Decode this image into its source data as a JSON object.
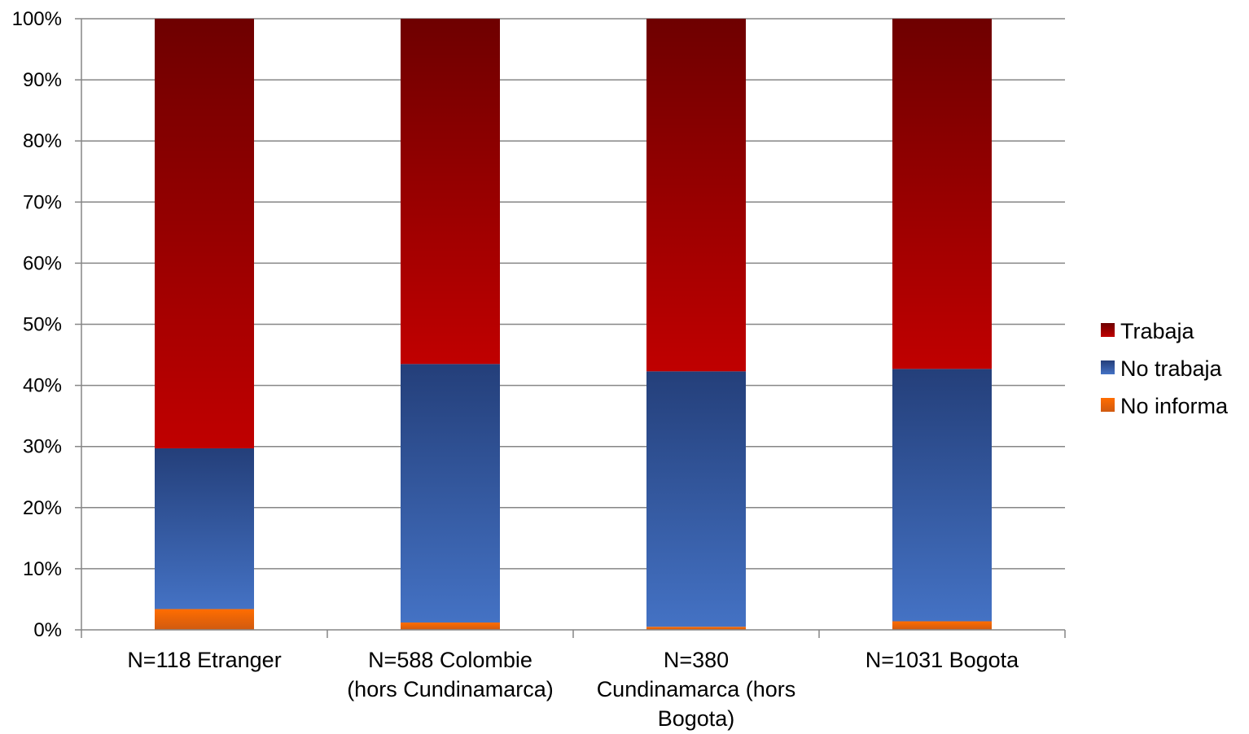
{
  "chart_data": {
    "type": "bar",
    "stacked": true,
    "percent_stacked": true,
    "categories": [
      [
        "N=118 Etranger"
      ],
      [
        "N=588 Colombie",
        "(hors Cundinamarca)"
      ],
      [
        "N=380",
        "Cundinamarca (hors",
        "Bogota)"
      ],
      [
        "N=1031 Bogota"
      ]
    ],
    "series": [
      {
        "name": "No informa",
        "values": [
          3.4,
          1.2,
          0.5,
          1.4
        ],
        "color": "#f06a10"
      },
      {
        "name": "No trabaja",
        "values": [
          26.3,
          42.3,
          41.8,
          41.3
        ],
        "color": "#3b64b0"
      },
      {
        "name": "Trabaja",
        "values": [
          70.3,
          56.5,
          57.7,
          57.3
        ],
        "color": "#a30000"
      }
    ],
    "yticks": [
      "0%",
      "10%",
      "20%",
      "30%",
      "40%",
      "50%",
      "60%",
      "70%",
      "80%",
      "90%",
      "100%"
    ],
    "ylim": [
      0,
      100
    ],
    "grid": true,
    "legend": {
      "position": "right",
      "entries": [
        "Trabaja",
        "No trabaja",
        "No informa"
      ]
    }
  }
}
